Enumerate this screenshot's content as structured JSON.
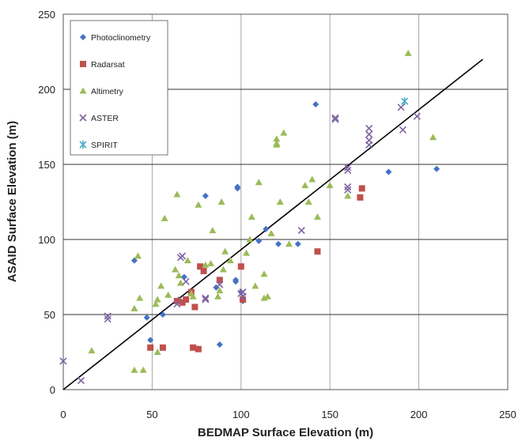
{
  "chart_data": {
    "type": "scatter",
    "title": "",
    "xlabel": "BEDMAP Surface Elevation (m)",
    "ylabel": "ASAID Surface Elevation (m)",
    "xlim": [
      0,
      250
    ],
    "ylim": [
      0,
      250
    ],
    "xticks": [
      "0",
      "50",
      "100",
      "150",
      "200",
      "250"
    ],
    "yticks": [
      "0",
      "50",
      "100",
      "150",
      "200",
      "250"
    ],
    "grid": true,
    "legend_position": "top-left",
    "series": [
      {
        "name": "Photoclinometry",
        "marker": "diamond",
        "color": "#4472C4",
        "points": [
          [
            40,
            86
          ],
          [
            47,
            48
          ],
          [
            49,
            33
          ],
          [
            56,
            50
          ],
          [
            65,
            60
          ],
          [
            68,
            75
          ],
          [
            80,
            129
          ],
          [
            86,
            68
          ],
          [
            88,
            30
          ],
          [
            97,
            72
          ],
          [
            97,
            73
          ],
          [
            98,
            134
          ],
          [
            98,
            135
          ],
          [
            100,
            65
          ],
          [
            101,
            59
          ],
          [
            110,
            99
          ],
          [
            114,
            107
          ],
          [
            121,
            97
          ],
          [
            132,
            97
          ],
          [
            142,
            190
          ],
          [
            183,
            145
          ],
          [
            210,
            147
          ]
        ]
      },
      {
        "name": "Radarsat",
        "marker": "square",
        "color": "#C0504D",
        "points": [
          [
            49,
            28
          ],
          [
            56,
            28
          ],
          [
            64,
            59
          ],
          [
            67,
            58
          ],
          [
            69,
            60
          ],
          [
            72,
            65
          ],
          [
            73,
            28
          ],
          [
            74,
            55
          ],
          [
            76,
            27
          ],
          [
            77,
            82
          ],
          [
            79,
            79
          ],
          [
            88,
            73
          ],
          [
            100,
            82
          ],
          [
            101,
            60
          ],
          [
            143,
            92
          ],
          [
            167,
            128
          ],
          [
            168,
            134
          ]
        ]
      },
      {
        "name": "Altimetry",
        "marker": "triangle",
        "color": "#9BBB59",
        "points": [
          [
            16,
            26
          ],
          [
            40,
            13
          ],
          [
            40,
            54
          ],
          [
            42,
            89
          ],
          [
            43,
            61
          ],
          [
            45,
            13
          ],
          [
            52,
            57
          ],
          [
            53,
            60
          ],
          [
            53,
            25
          ],
          [
            55,
            69
          ],
          [
            57,
            114
          ],
          [
            59,
            63
          ],
          [
            63,
            80
          ],
          [
            64,
            130
          ],
          [
            65,
            76
          ],
          [
            66,
            71
          ],
          [
            70,
            86
          ],
          [
            72,
            64
          ],
          [
            73,
            62
          ],
          [
            76,
            123
          ],
          [
            80,
            83
          ],
          [
            83,
            84
          ],
          [
            84,
            106
          ],
          [
            87,
            62
          ],
          [
            88,
            66
          ],
          [
            89,
            125
          ],
          [
            90,
            80
          ],
          [
            91,
            92
          ],
          [
            94,
            86
          ],
          [
            103,
            91
          ],
          [
            105,
            100
          ],
          [
            106,
            115
          ],
          [
            108,
            69
          ],
          [
            110,
            138
          ],
          [
            113,
            77
          ],
          [
            113,
            61
          ],
          [
            115,
            62
          ],
          [
            117,
            104
          ],
          [
            120,
            167
          ],
          [
            120,
            164
          ],
          [
            120,
            163
          ],
          [
            122,
            125
          ],
          [
            124,
            171
          ],
          [
            127,
            97
          ],
          [
            136,
            136
          ],
          [
            138,
            125
          ],
          [
            140,
            140
          ],
          [
            143,
            115
          ],
          [
            150,
            136
          ],
          [
            160,
            129
          ],
          [
            194,
            224
          ],
          [
            208,
            168
          ]
        ]
      },
      {
        "name": "ASTER",
        "marker": "x",
        "color": "#8064A2",
        "points": [
          [
            0,
            19
          ],
          [
            10,
            6
          ],
          [
            25,
            49
          ],
          [
            25,
            47
          ],
          [
            64,
            57
          ],
          [
            66,
            88
          ],
          [
            67,
            89
          ],
          [
            69,
            72
          ],
          [
            80,
            60
          ],
          [
            80,
            61
          ],
          [
            88,
            70
          ],
          [
            100,
            64
          ],
          [
            101,
            62
          ],
          [
            101,
            65
          ],
          [
            134,
            106
          ],
          [
            153,
            181
          ],
          [
            153,
            180
          ],
          [
            160,
            135
          ],
          [
            160,
            133
          ],
          [
            160,
            146
          ],
          [
            160,
            148
          ],
          [
            172,
            174
          ],
          [
            172,
            170
          ],
          [
            172,
            166
          ],
          [
            172,
            163
          ],
          [
            190,
            188
          ],
          [
            191,
            173
          ],
          [
            199,
            182
          ]
        ]
      },
      {
        "name": "SPIRIT",
        "marker": "star",
        "color": "#4BACC6",
        "points": [
          [
            192,
            192
          ]
        ]
      }
    ],
    "trendline": {
      "from": [
        0,
        0
      ],
      "to": [
        236,
        220
      ],
      "color": "#000000"
    }
  }
}
